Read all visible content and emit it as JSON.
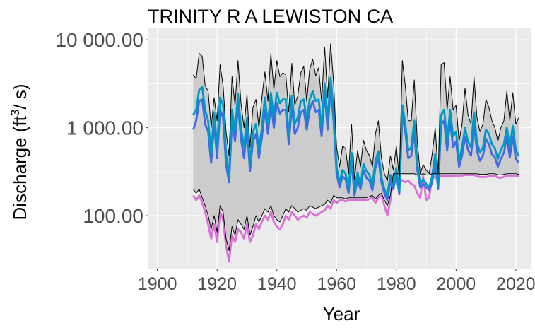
{
  "chart_data": {
    "type": "line",
    "title": "TRINITY R A LEWISTON CA",
    "xlabel": "Year",
    "ylabel_main": "Discharge (ft",
    "ylabel_sup": "3",
    "ylabel_end": "/ s)",
    "y_scale": "log10",
    "xlim": [
      1897,
      2025
    ],
    "ylim": [
      25,
      13500
    ],
    "x_ticks": [
      1900,
      1920,
      1940,
      1960,
      1980,
      2000,
      2020
    ],
    "x_tick_labels": [
      "1900",
      "1920",
      "1940",
      "1960",
      "1980",
      "2000",
      "2020"
    ],
    "y_ticks": [
      100,
      1000,
      10000
    ],
    "y_tick_labels": [
      "100.00",
      "1 000.00",
      "10 000.00"
    ],
    "grid": true,
    "legend": "none",
    "background": "#ebebeb",
    "x": [
      1912,
      1913,
      1914,
      1915,
      1916,
      1917,
      1918,
      1919,
      1920,
      1921,
      1922,
      1923,
      1924,
      1925,
      1926,
      1927,
      1928,
      1929,
      1930,
      1931,
      1932,
      1933,
      1934,
      1935,
      1936,
      1937,
      1938,
      1939,
      1940,
      1941,
      1942,
      1943,
      1944,
      1945,
      1946,
      1947,
      1948,
      1949,
      1950,
      1951,
      1952,
      1953,
      1954,
      1955,
      1956,
      1957,
      1958,
      1959,
      1960,
      1961,
      1962,
      1963,
      1964,
      1965,
      1966,
      1967,
      1968,
      1969,
      1970,
      1971,
      1972,
      1973,
      1974,
      1975,
      1976,
      1977,
      1978,
      1979,
      1980,
      1981,
      1982,
      1983,
      1984,
      1985,
      1986,
      1987,
      1988,
      1989,
      1990,
      1991,
      1992,
      1993,
      1994,
      1995,
      1996,
      1997,
      1998,
      1999,
      2000,
      2001,
      2002,
      2003,
      2004,
      2005,
      2006,
      2007,
      2008,
      2009,
      2010,
      2011,
      2012,
      2013,
      2014,
      2015,
      2016,
      2017,
      2018,
      2019,
      2020,
      2021
    ],
    "series": [
      {
        "role": "max",
        "color": "#000000",
        "values": [
          4000,
          3600,
          7000,
          6500,
          3000,
          2600,
          1000,
          2200,
          1200,
          5200,
          3000,
          900,
          480,
          3800,
          1800,
          5800,
          1900,
          1000,
          2400,
          600,
          1700,
          2100,
          1000,
          2200,
          4300,
          2000,
          7000,
          2700,
          5800,
          3800,
          4200,
          4000,
          1500,
          5400,
          1800,
          2300,
          4200,
          5000,
          2000,
          4600,
          6000,
          3900,
          4800,
          2000,
          8200,
          2200,
          9000,
          3300,
          600,
          360,
          620,
          580,
          300,
          1100,
          260,
          550,
          360,
          720,
          550,
          480,
          360,
          850,
          1200,
          450,
          300,
          250,
          480,
          330,
          620,
          260,
          5800,
          3000,
          1200,
          1200,
          3500,
          700,
          300,
          380,
          330,
          300,
          500,
          1000,
          300,
          5200,
          5500,
          1600,
          3800,
          1600,
          1800,
          700,
          1100,
          2800,
          1400,
          1100,
          3800,
          1300,
          900,
          1100,
          2100,
          1700,
          1200,
          1000,
          700,
          1000,
          1200,
          2600,
          1200,
          2500,
          1100,
          1300
        ]
      },
      {
        "role": "mean",
        "color": "#0099c6",
        "values": [
          1400,
          1600,
          2700,
          2900,
          1600,
          1200,
          500,
          1500,
          600,
          2200,
          1800,
          500,
          280,
          1600,
          900,
          2400,
          1000,
          600,
          1300,
          380,
          900,
          1100,
          550,
          1000,
          2200,
          1100,
          2500,
          1300,
          2500,
          1900,
          2100,
          2100,
          800,
          2300,
          1100,
          1300,
          2000,
          2100,
          1200,
          2100,
          2600,
          2000,
          2100,
          1000,
          3200,
          1200,
          3700,
          1600,
          350,
          240,
          330,
          300,
          200,
          520,
          190,
          310,
          220,
          390,
          320,
          290,
          220,
          420,
          540,
          270,
          200,
          170,
          290,
          220,
          350,
          190,
          1800,
          1100,
          550,
          600,
          1200,
          400,
          230,
          260,
          230,
          210,
          280,
          500,
          220,
          1400,
          1600,
          700,
          1600,
          800,
          900,
          430,
          600,
          1000,
          700,
          600,
          1500,
          680,
          520,
          600,
          950,
          850,
          650,
          580,
          440,
          560,
          650,
          1000,
          600,
          1050,
          550,
          480
        ]
      },
      {
        "role": "median",
        "color": "#4169e1",
        "values": [
          950,
          1200,
          2000,
          2100,
          1100,
          900,
          400,
          1100,
          450,
          1600,
          1300,
          380,
          240,
          1200,
          700,
          1800,
          750,
          450,
          1000,
          320,
          700,
          850,
          450,
          780,
          1600,
          850,
          1900,
          1000,
          1900,
          1450,
          1600,
          1600,
          650,
          1750,
          850,
          1000,
          1500,
          1600,
          950,
          1600,
          2000,
          1500,
          1600,
          800,
          2500,
          950,
          2800,
          1200,
          300,
          210,
          280,
          260,
          180,
          420,
          170,
          260,
          200,
          330,
          270,
          250,
          195,
          350,
          450,
          240,
          180,
          150,
          250,
          200,
          300,
          175,
          1400,
          900,
          450,
          480,
          900,
          330,
          210,
          230,
          210,
          195,
          240,
          400,
          200,
          1100,
          1200,
          550,
          1200,
          600,
          700,
          360,
          480,
          800,
          560,
          480,
          1100,
          540,
          420,
          480,
          750,
          650,
          500,
          460,
          360,
          440,
          520,
          780,
          460,
          800,
          440,
          400
        ]
      },
      {
        "role": "min_mean",
        "color": "#da70d6",
        "values": [
          170,
          150,
          170,
          140,
          110,
          80,
          55,
          80,
          50,
          110,
          90,
          45,
          30,
          60,
          50,
          70,
          65,
          55,
          80,
          50,
          60,
          80,
          70,
          85,
          100,
          90,
          110,
          85,
          75,
          70,
          80,
          100,
          90,
          110,
          100,
          90,
          95,
          100,
          95,
          110,
          105,
          100,
          105,
          110,
          115,
          130,
          120,
          150,
          140,
          150,
          150,
          145,
          150,
          150,
          150,
          150,
          150,
          150,
          150,
          155,
          160,
          140,
          160,
          170,
          130,
          100,
          150,
          280,
          270,
          270,
          250,
          240,
          250,
          230,
          220,
          180,
          160,
          280,
          150,
          160,
          280,
          270,
          270,
          280,
          280,
          280,
          280,
          280,
          285,
          285,
          285,
          290,
          290,
          290,
          290,
          280,
          275,
          275,
          275,
          280,
          285,
          285,
          270,
          270,
          275,
          285,
          285,
          285,
          285,
          280
        ]
      },
      {
        "role": "min",
        "color": "#000000",
        "values": [
          200,
          180,
          200,
          160,
          130,
          100,
          70,
          100,
          65,
          130,
          110,
          55,
          40,
          75,
          60,
          90,
          80,
          70,
          100,
          60,
          75,
          100,
          85,
          100,
          120,
          110,
          130,
          100,
          90,
          85,
          100,
          120,
          110,
          130,
          120,
          110,
          115,
          120,
          115,
          130,
          125,
          120,
          125,
          130,
          135,
          150,
          140,
          170,
          160,
          160,
          160,
          155,
          160,
          160,
          160,
          160,
          160,
          160,
          160,
          165,
          170,
          155,
          170,
          180,
          150,
          130,
          170,
          300,
          300,
          300,
          300,
          300,
          300,
          300,
          300,
          290,
          290,
          300,
          290,
          290,
          300,
          300,
          300,
          300,
          300,
          300,
          300,
          300,
          300,
          300,
          300,
          300,
          300,
          300,
          300,
          300,
          295,
          295,
          295,
          300,
          300,
          300,
          290,
          290,
          295,
          300,
          300,
          300,
          300,
          295
        ]
      }
    ]
  }
}
